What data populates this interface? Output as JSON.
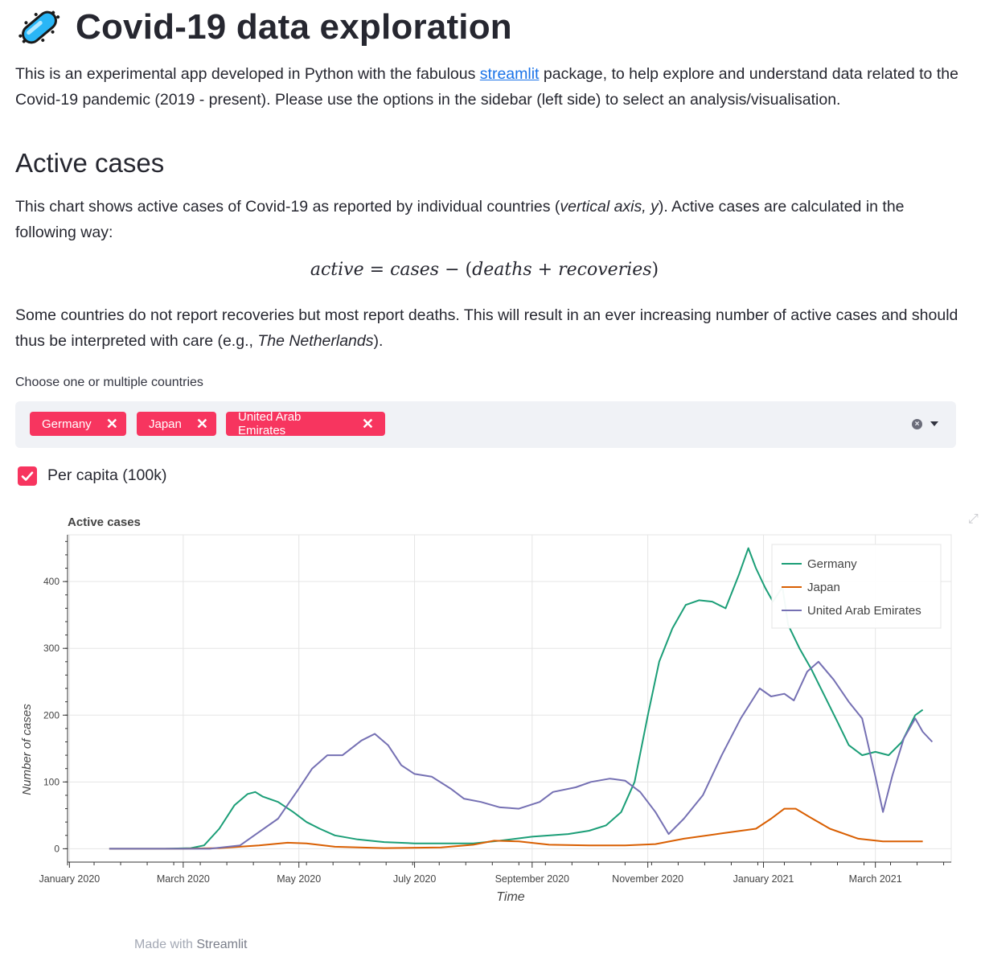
{
  "header": {
    "title": "Covid-19 data exploration",
    "icon": "microbe-icon"
  },
  "intro": {
    "text_before_link": "This is an experimental app developed in Python with the fabulous ",
    "link_text": "streamlit",
    "text_after_link": " package, to help explore and understand data related to the Covid-19 pandemic (2019 - present). Please use the options in the sidebar (left side) to select an analysis/visualisation."
  },
  "section": {
    "heading": "Active cases",
    "description_1a": "This chart shows active cases of Covid-19 as reported by individual countries (",
    "description_1_italic": "vertical axis, y",
    "description_1b": "). Active cases are calculated in the following way:",
    "formula": {
      "lhs": "active",
      "eq": "=",
      "cases": "cases",
      "minus": "−",
      "open": "(",
      "deaths": "deaths",
      "plus": "+",
      "recoveries": "recoveries",
      "close": ")"
    },
    "description_2a": "Some countries do not report recoveries but most report deaths. This will result in an ever increasing number of active cases and should thus be interpreted with care (e.g., ",
    "description_2_italic": "The Netherlands",
    "description_2b": ")."
  },
  "country_select": {
    "label": "Choose one or multiple countries",
    "selected": [
      "Germany",
      "Japan",
      "United Arab Emirates"
    ],
    "chip_close": "✕",
    "clear_icon": "clear-circle-icon",
    "dropdown_icon": "chevron-down-icon"
  },
  "per_capita": {
    "label": "Per capita (100k)",
    "checked": true
  },
  "colors": {
    "accent": "#f7355f",
    "germany": "#1b9e77",
    "japan": "#d95f02",
    "uae": "#7570b3"
  },
  "chart_data": {
    "type": "line",
    "title": "Active cases",
    "xlabel": "Time",
    "ylabel": "Number of cases",
    "x_ticks": [
      "January 2020",
      "March 2020",
      "May 2020",
      "July 2020",
      "September 2020",
      "November 2020",
      "January 2021",
      "March 2021"
    ],
    "x_tick_dates": [
      "2020-01-01",
      "2020-03-01",
      "2020-05-01",
      "2020-07-01",
      "2020-09-01",
      "2020-11-01",
      "2021-01-01",
      "2021-03-01"
    ],
    "y_ticks": [
      "0",
      "100",
      "200",
      "300",
      "400"
    ],
    "ylim": [
      -20,
      470
    ],
    "xlim": [
      "2019-12-31",
      "2021-04-10"
    ],
    "grid": true,
    "legend_position": "top-right",
    "series": [
      {
        "name": "Germany",
        "color": "#1b9e77",
        "points": [
          [
            "2020-01-22",
            0
          ],
          [
            "2020-02-20",
            0
          ],
          [
            "2020-03-05",
            1
          ],
          [
            "2020-03-12",
            5
          ],
          [
            "2020-03-20",
            30
          ],
          [
            "2020-03-28",
            65
          ],
          [
            "2020-04-04",
            82
          ],
          [
            "2020-04-08",
            85
          ],
          [
            "2020-04-12",
            78
          ],
          [
            "2020-04-20",
            70
          ],
          [
            "2020-04-28",
            55
          ],
          [
            "2020-05-05",
            40
          ],
          [
            "2020-05-12",
            30
          ],
          [
            "2020-05-20",
            20
          ],
          [
            "2020-06-01",
            14
          ],
          [
            "2020-06-15",
            10
          ],
          [
            "2020-07-01",
            8
          ],
          [
            "2020-07-15",
            8
          ],
          [
            "2020-08-01",
            8
          ],
          [
            "2020-08-15",
            12
          ],
          [
            "2020-09-01",
            18
          ],
          [
            "2020-09-20",
            22
          ],
          [
            "2020-10-01",
            27
          ],
          [
            "2020-10-10",
            35
          ],
          [
            "2020-10-18",
            55
          ],
          [
            "2020-10-25",
            100
          ],
          [
            "2020-11-01",
            200
          ],
          [
            "2020-11-07",
            280
          ],
          [
            "2020-11-14",
            330
          ],
          [
            "2020-11-21",
            365
          ],
          [
            "2020-11-28",
            372
          ],
          [
            "2020-12-05",
            370
          ],
          [
            "2020-12-12",
            360
          ],
          [
            "2020-12-19",
            410
          ],
          [
            "2020-12-24",
            450
          ],
          [
            "2020-12-28",
            420
          ],
          [
            "2021-01-02",
            390
          ],
          [
            "2021-01-06",
            370
          ],
          [
            "2021-01-11",
            392
          ],
          [
            "2021-01-14",
            335
          ],
          [
            "2021-01-20",
            300
          ],
          [
            "2021-01-26",
            270
          ],
          [
            "2021-02-02",
            230
          ],
          [
            "2021-02-09",
            190
          ],
          [
            "2021-02-15",
            155
          ],
          [
            "2021-02-22",
            140
          ],
          [
            "2021-03-01",
            145
          ],
          [
            "2021-03-08",
            140
          ],
          [
            "2021-03-15",
            160
          ],
          [
            "2021-03-22",
            200
          ],
          [
            "2021-03-26",
            208
          ]
        ]
      },
      {
        "name": "Japan",
        "color": "#d95f02",
        "points": [
          [
            "2020-01-22",
            0
          ],
          [
            "2020-03-01",
            0
          ],
          [
            "2020-03-20",
            1
          ],
          [
            "2020-04-10",
            5
          ],
          [
            "2020-04-25",
            9
          ],
          [
            "2020-05-05",
            8
          ],
          [
            "2020-05-20",
            3
          ],
          [
            "2020-06-15",
            1
          ],
          [
            "2020-07-15",
            2
          ],
          [
            "2020-08-01",
            6
          ],
          [
            "2020-08-12",
            12
          ],
          [
            "2020-08-25",
            11
          ],
          [
            "2020-09-10",
            6
          ],
          [
            "2020-10-01",
            5
          ],
          [
            "2020-10-20",
            5
          ],
          [
            "2020-11-05",
            7
          ],
          [
            "2020-11-20",
            15
          ],
          [
            "2020-12-10",
            23
          ],
          [
            "2020-12-28",
            30
          ],
          [
            "2021-01-05",
            45
          ],
          [
            "2021-01-12",
            60
          ],
          [
            "2021-01-18",
            60
          ],
          [
            "2021-01-25",
            48
          ],
          [
            "2021-02-05",
            30
          ],
          [
            "2021-02-20",
            15
          ],
          [
            "2021-03-05",
            11
          ],
          [
            "2021-03-26",
            11
          ]
        ]
      },
      {
        "name": "United Arab Emirates",
        "color": "#7570b3",
        "points": [
          [
            "2020-01-22",
            0
          ],
          [
            "2020-03-15",
            0
          ],
          [
            "2020-03-31",
            5
          ],
          [
            "2020-04-10",
            25
          ],
          [
            "2020-04-20",
            45
          ],
          [
            "2020-05-01",
            90
          ],
          [
            "2020-05-08",
            120
          ],
          [
            "2020-05-16",
            140
          ],
          [
            "2020-05-24",
            140
          ],
          [
            "2020-06-03",
            162
          ],
          [
            "2020-06-10",
            172
          ],
          [
            "2020-06-17",
            155
          ],
          [
            "2020-06-24",
            125
          ],
          [
            "2020-07-01",
            112
          ],
          [
            "2020-07-10",
            108
          ],
          [
            "2020-07-20",
            90
          ],
          [
            "2020-07-27",
            75
          ],
          [
            "2020-08-05",
            70
          ],
          [
            "2020-08-15",
            62
          ],
          [
            "2020-08-25",
            60
          ],
          [
            "2020-09-05",
            70
          ],
          [
            "2020-09-12",
            85
          ],
          [
            "2020-09-24",
            92
          ],
          [
            "2020-10-02",
            100
          ],
          [
            "2020-10-12",
            105
          ],
          [
            "2020-10-20",
            102
          ],
          [
            "2020-10-28",
            85
          ],
          [
            "2020-11-05",
            55
          ],
          [
            "2020-11-12",
            22
          ],
          [
            "2020-11-20",
            45
          ],
          [
            "2020-11-30",
            80
          ],
          [
            "2020-12-10",
            140
          ],
          [
            "2020-12-20",
            195
          ],
          [
            "2020-12-30",
            240
          ],
          [
            "2021-01-05",
            228
          ],
          [
            "2021-01-12",
            232
          ],
          [
            "2021-01-17",
            222
          ],
          [
            "2021-01-24",
            265
          ],
          [
            "2021-01-30",
            280
          ],
          [
            "2021-02-07",
            253
          ],
          [
            "2021-02-15",
            220
          ],
          [
            "2021-02-22",
            195
          ],
          [
            "2021-03-01",
            108
          ],
          [
            "2021-03-05",
            55
          ],
          [
            "2021-03-10",
            110
          ],
          [
            "2021-03-16",
            165
          ],
          [
            "2021-03-22",
            195
          ],
          [
            "2021-03-26",
            175
          ],
          [
            "2021-03-31",
            160
          ]
        ]
      }
    ]
  },
  "toolbar": {
    "fullscreen_icon": "fullscreen-expand-icon"
  },
  "footer": {
    "prefix": "Made with ",
    "brand": "Streamlit"
  }
}
